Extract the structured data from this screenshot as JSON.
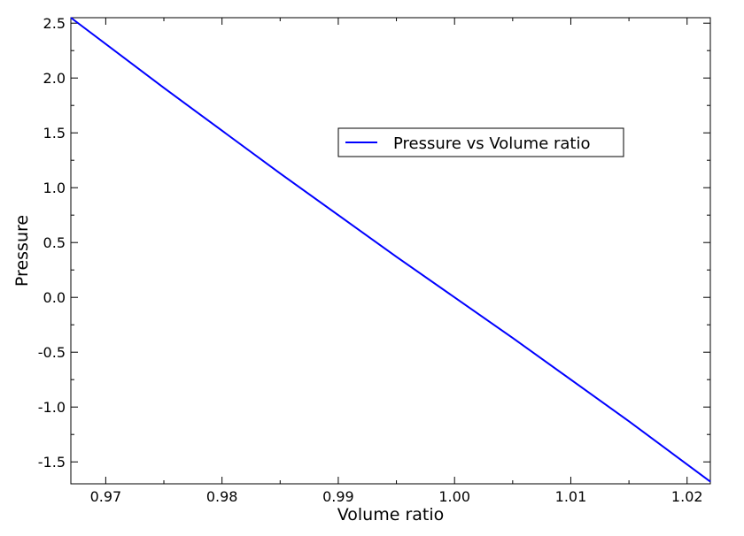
{
  "chart_data": {
    "type": "line",
    "title": "",
    "xlabel": "Volume ratio",
    "ylabel": "Pressure",
    "xlim": [
      0.967,
      1.022
    ],
    "ylim": [
      -1.7,
      2.55
    ],
    "xticks": [
      0.97,
      0.98,
      0.99,
      1.0,
      1.01,
      1.02
    ],
    "xtick_labels": [
      "0.97",
      "0.98",
      "0.99",
      "1.00",
      "1.01",
      "1.02"
    ],
    "yticks": [
      -1.5,
      -1.0,
      -0.5,
      0.0,
      0.5,
      1.0,
      1.5,
      2.0,
      2.5
    ],
    "ytick_labels": [
      "-1.5",
      "-1.0",
      "-0.5",
      "0.0",
      "0.5",
      "1.0",
      "1.5",
      "2.0",
      "2.5"
    ],
    "grid": false,
    "legend_position": "upper-right-center",
    "series": [
      {
        "name": "Pressure vs Volume ratio",
        "color": "#0000ff",
        "x": [
          0.967,
          0.975,
          0.985,
          0.995,
          1.0,
          1.005,
          1.015,
          1.022
        ],
        "y": [
          2.55,
          1.91,
          1.13,
          0.37,
          0.0,
          -0.37,
          -1.13,
          -1.68
        ]
      }
    ]
  }
}
